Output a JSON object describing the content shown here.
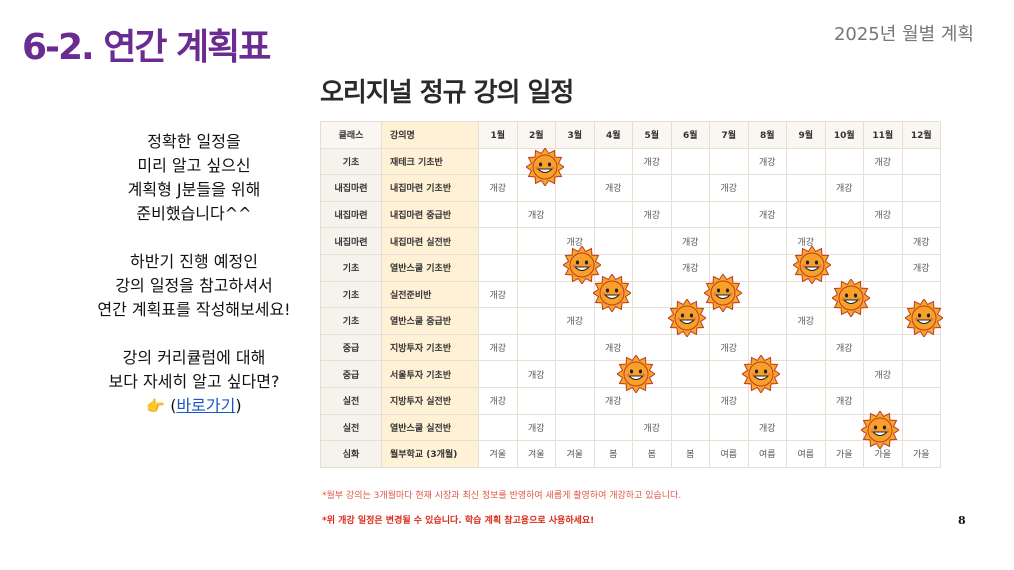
{
  "header": {
    "title": "6-2. 연간 계획표",
    "subtitle": "2025년 월별 계획"
  },
  "intro": {
    "lines1": [
      "정확한 일정을",
      "미리 알고 싶으신",
      "계획형 J분들을 위해",
      "준비했습니다^^"
    ],
    "lines2": [
      "하반기 진행 예정인",
      "강의 일정을 참고하셔서",
      "연간 계획표를 작성해보세요!"
    ],
    "lines3": [
      "강의 커리큘럼에 대해",
      "보다 자세히 알고 싶다면?"
    ],
    "link_prefix": "(",
    "link_label": "바로가기",
    "link_suffix": ")"
  },
  "schedule": {
    "title": "오리지널 정규 강의 일정",
    "headers": [
      "클래스",
      "강의명",
      "1월",
      "2월",
      "3월",
      "4월",
      "5월",
      "6월",
      "7월",
      "8월",
      "9월",
      "10월",
      "11월",
      "12월"
    ],
    "rows": [
      {
        "cls": "기초",
        "name": "재테크 기초반",
        "cells": [
          "",
          "",
          "",
          "",
          "개강",
          "",
          "",
          "개강",
          "",
          "",
          "개강",
          ""
        ]
      },
      {
        "cls": "내집마련",
        "name": "내집마련 기초반",
        "cells": [
          "개강",
          "",
          "",
          "개강",
          "",
          "",
          "개강",
          "",
          "",
          "개강",
          "",
          ""
        ]
      },
      {
        "cls": "내집마련",
        "name": "내집마련 중급반",
        "cells": [
          "",
          "개강",
          "",
          "",
          "개강",
          "",
          "",
          "개강",
          "",
          "",
          "개강",
          ""
        ]
      },
      {
        "cls": "내집마련",
        "name": "내집마련 실전반",
        "cells": [
          "",
          "",
          "개강",
          "",
          "",
          "개강",
          "",
          "",
          "개강",
          "",
          "",
          "개강"
        ]
      },
      {
        "cls": "기초",
        "name": "열반스쿨 기초반",
        "cells": [
          "",
          "",
          "",
          "",
          "",
          "개강",
          "",
          "",
          "",
          "",
          "",
          "개강"
        ]
      },
      {
        "cls": "기초",
        "name": "실전준비반",
        "cells": [
          "개강",
          "",
          "",
          "",
          "",
          "",
          "",
          "",
          "",
          "",
          "",
          ""
        ]
      },
      {
        "cls": "기초",
        "name": "열반스쿨 중급반",
        "cells": [
          "",
          "",
          "개강",
          "",
          "",
          "",
          "",
          "",
          "개강",
          "",
          "",
          ""
        ]
      },
      {
        "cls": "중급",
        "name": "지방투자 기초반",
        "cells": [
          "개강",
          "",
          "",
          "개강",
          "",
          "",
          "개강",
          "",
          "",
          "개강",
          "",
          ""
        ]
      },
      {
        "cls": "중급",
        "name": "서울투자 기초반",
        "cells": [
          "",
          "개강",
          "",
          "",
          "",
          "",
          "",
          "",
          "",
          "",
          "개강",
          ""
        ]
      },
      {
        "cls": "실전",
        "name": "지방투자 실전반",
        "cells": [
          "개강",
          "",
          "",
          "개강",
          "",
          "",
          "개강",
          "",
          "",
          "개강",
          "",
          ""
        ]
      },
      {
        "cls": "실전",
        "name": "열반스쿨 실전반",
        "cells": [
          "",
          "개강",
          "",
          "",
          "개강",
          "",
          "",
          "개강",
          "",
          "",
          "",
          ""
        ]
      },
      {
        "cls": "심화",
        "name": "월부학교 (3개월)",
        "cells": [
          "겨울",
          "겨울",
          "겨울",
          "봄",
          "봄",
          "봄",
          "여름",
          "여름",
          "여름",
          "가을",
          "가을",
          "가을"
        ]
      }
    ],
    "note1": "*월부 강의는 3개월마다 현재 시장과 최신 정보를 반영하여 새롭게 촬영하여 개강하고 있습니다.",
    "note2": "*위 개강 일정은 변경될 수 있습니다. 학습 계획 참고용으로 사용하세요!"
  },
  "page_number": "8",
  "colors": {
    "title": "#6a2c91",
    "accent_red": "#d92a1a",
    "sticker": "#f5a623",
    "link": "#1a55c8"
  },
  "icons": {
    "sticker": "smiling-sun-sticker-icon",
    "pointer": "pointing-hand-icon"
  }
}
